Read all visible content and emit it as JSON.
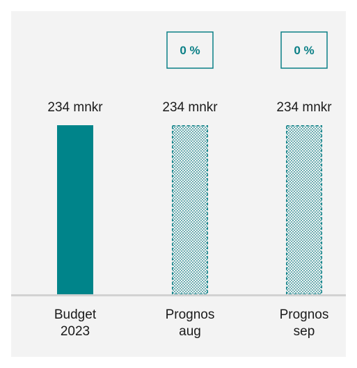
{
  "chart_data": {
    "type": "bar",
    "categories": [
      "Budget 2023",
      "Prognos aug",
      "Prognos sep"
    ],
    "category_lines": [
      [
        "Budget",
        "2023"
      ],
      [
        "Prognos",
        "aug"
      ],
      [
        "Prognos",
        "sep"
      ]
    ],
    "values": [
      234,
      234,
      234
    ],
    "value_labels": [
      "234 mnkr",
      "234 mnkr",
      "234 mnkr"
    ],
    "change_labels": [
      "",
      "0 %",
      "0 %"
    ],
    "bar_styles": [
      "solid",
      "dotted",
      "dotted"
    ],
    "unit": "mnkr",
    "title": "",
    "xlabel": "",
    "ylabel": "",
    "ylim": [
      0,
      234
    ],
    "grid": false,
    "legend": "none",
    "colors": {
      "bar": "#00848a",
      "dot": "#0a7f86",
      "baseline": "#d2d2d2",
      "panel": "#f3f3f3",
      "text": "#1a1a1a"
    }
  }
}
